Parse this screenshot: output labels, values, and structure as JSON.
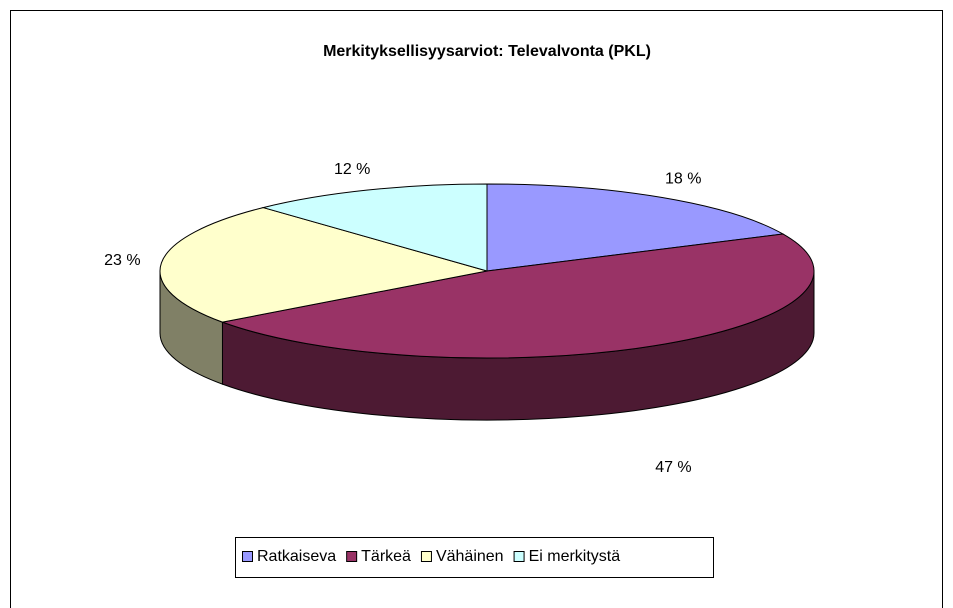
{
  "chart_data": {
    "type": "pie3d",
    "title": "Merkityksellisyysarviot: Televalvonta (PKL)",
    "categories": [
      "Ratkaiseva",
      "Tärkeä",
      "Vähäinen",
      "Ei merkitystä"
    ],
    "values": [
      18,
      47,
      23,
      12
    ],
    "value_labels": [
      "18 %",
      "47 %",
      "23 %",
      "12 %"
    ],
    "colors": [
      "#9999ff",
      "#993366",
      "#ffffcc",
      "#ccffff"
    ],
    "legend": "bottom"
  }
}
